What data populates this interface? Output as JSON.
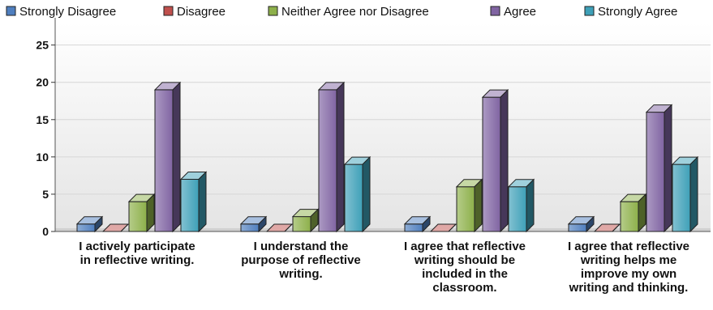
{
  "chart_data": {
    "type": "bar",
    "title": "",
    "xlabel": "",
    "ylabel": "",
    "ylim": [
      0,
      28
    ],
    "yticks": [
      0,
      5,
      10,
      15,
      20,
      25
    ],
    "grid": true,
    "legend_position": "top",
    "categories": [
      [
        "I actively participate",
        "in reflective writing."
      ],
      [
        "I understand the",
        "purpose of reflective",
        "writing."
      ],
      [
        "I agree that reflective",
        "writing should be",
        "included in the",
        "classroom."
      ],
      [
        "I agree that reflective",
        "writing helps me",
        "improve my own",
        "writing and thinking."
      ]
    ],
    "series": [
      {
        "name": "Strongly Disagree",
        "color": "#4f7fbf",
        "values": [
          1,
          1,
          1,
          1
        ]
      },
      {
        "name": "Disagree",
        "color": "#c0504d",
        "values": [
          0,
          0,
          0,
          0
        ]
      },
      {
        "name": "Neither Agree nor Disagree",
        "color": "#8db04a",
        "values": [
          4,
          2,
          6,
          4
        ]
      },
      {
        "name": "Agree",
        "color": "#8064a2",
        "values": [
          19,
          19,
          18,
          16
        ]
      },
      {
        "name": "Strongly Agree",
        "color": "#3ea0b8",
        "values": [
          7,
          9,
          6,
          9
        ]
      }
    ]
  }
}
